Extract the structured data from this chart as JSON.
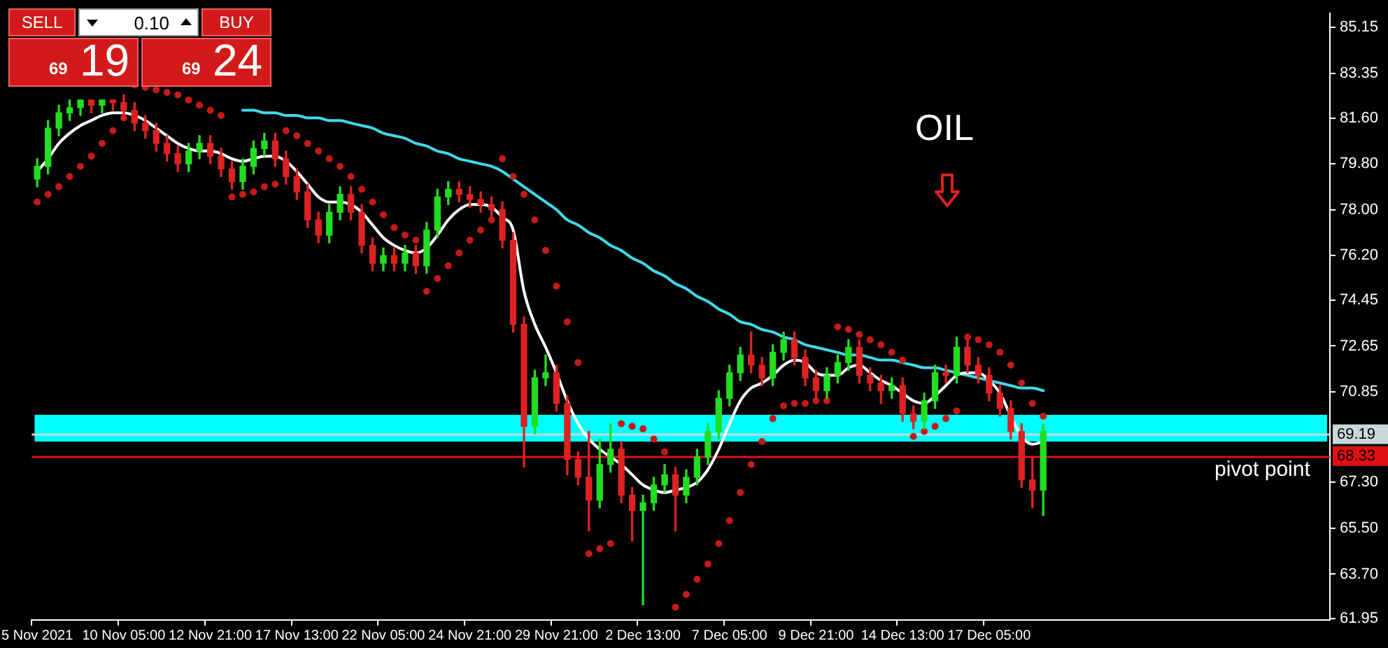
{
  "chart_data": {
    "type": "candlestick",
    "categories": [
      "5 Nov 2021",
      null,
      null,
      null,
      null,
      null,
      null,
      null,
      "10 Nov 05:00",
      null,
      null,
      null,
      null,
      null,
      null,
      null,
      "12 Nov 21:00",
      null,
      null,
      null,
      null,
      null,
      null,
      null,
      "17 Nov 13:00",
      null,
      null,
      null,
      null,
      null,
      null,
      null,
      "22 Nov 05:00",
      null,
      null,
      null,
      null,
      null,
      null,
      null,
      "24 Nov 21:00",
      null,
      null,
      null,
      null,
      null,
      null,
      null,
      "29 Nov 21:00",
      null,
      null,
      null,
      null,
      null,
      null,
      null,
      "2 Dec 13:00",
      null,
      null,
      null,
      null,
      null,
      null,
      null,
      "7 Dec 05:00",
      null,
      null,
      null,
      null,
      null,
      null,
      null,
      "9 Dec 21:00",
      null,
      null,
      null,
      null,
      null,
      null,
      null,
      "14 Dec 13:00",
      null,
      null,
      null,
      null,
      null,
      null,
      null,
      "17 Dec 05:00",
      null,
      null,
      null,
      null,
      null,
      null,
      null,
      null,
      null,
      null,
      null,
      null,
      null,
      null,
      null,
      null,
      null,
      null,
      null,
      null,
      null,
      null,
      null,
      null,
      null,
      null,
      null,
      null,
      null,
      null,
      null
    ],
    "series": [
      {
        "ohlc": [
          [
            79.2,
            80.0,
            78.9,
            79.7
          ],
          [
            79.7,
            81.5,
            79.4,
            81.2
          ],
          [
            81.2,
            82.1,
            80.9,
            81.8
          ],
          [
            81.8,
            82.3,
            81.5,
            82.0
          ],
          [
            82.0,
            82.3,
            81.7,
            82.3
          ],
          [
            82.3,
            82.3,
            81.8,
            82.1
          ],
          [
            82.1,
            82.3,
            81.8,
            82.3
          ],
          [
            82.3,
            82.3,
            81.9,
            82.2
          ],
          [
            82.2,
            82.5,
            81.6,
            81.9
          ],
          [
            81.9,
            82.2,
            81.1,
            81.4
          ],
          [
            81.4,
            81.7,
            80.8,
            81.1
          ],
          [
            81.1,
            81.4,
            80.3,
            80.6
          ],
          [
            80.6,
            80.9,
            79.9,
            80.2
          ],
          [
            80.2,
            80.5,
            79.5,
            79.8
          ],
          [
            79.8,
            80.6,
            79.5,
            80.3
          ],
          [
            80.3,
            80.9,
            80.0,
            80.6
          ],
          [
            80.6,
            80.9,
            79.8,
            80.1
          ],
          [
            80.1,
            80.4,
            79.3,
            79.6
          ],
          [
            79.6,
            79.9,
            78.8,
            79.1
          ],
          [
            79.1,
            80.0,
            78.8,
            79.7
          ],
          [
            79.7,
            80.7,
            79.4,
            80.4
          ],
          [
            80.4,
            81.0,
            80.1,
            80.7
          ],
          [
            80.7,
            81.0,
            79.7,
            80.0
          ],
          [
            80.0,
            80.3,
            79.0,
            79.3
          ],
          [
            79.3,
            79.6,
            78.4,
            78.7
          ],
          [
            78.7,
            79.0,
            77.3,
            77.6
          ],
          [
            77.6,
            77.9,
            76.7,
            77.0
          ],
          [
            77.0,
            78.2,
            76.7,
            77.9
          ],
          [
            77.9,
            78.9,
            77.6,
            78.6
          ],
          [
            78.6,
            78.9,
            77.6,
            77.9
          ],
          [
            77.9,
            78.2,
            76.3,
            76.6
          ],
          [
            76.6,
            76.9,
            75.6,
            75.9
          ],
          [
            75.9,
            76.5,
            75.6,
            76.2
          ],
          [
            76.2,
            76.5,
            75.6,
            75.9
          ],
          [
            75.9,
            76.6,
            75.6,
            76.3
          ],
          [
            76.3,
            76.6,
            75.5,
            75.8
          ],
          [
            75.8,
            77.5,
            75.5,
            77.2
          ],
          [
            77.2,
            78.8,
            76.9,
            78.5
          ],
          [
            78.5,
            79.1,
            78.2,
            78.8
          ],
          [
            78.8,
            79.1,
            78.3,
            78.6
          ],
          [
            78.6,
            78.9,
            78.1,
            78.4
          ],
          [
            78.4,
            78.7,
            77.9,
            78.2
          ],
          [
            78.2,
            78.5,
            77.7,
            78.0
          ],
          [
            78.0,
            78.3,
            76.5,
            76.8
          ],
          [
            76.8,
            77.1,
            73.2,
            73.5
          ],
          [
            73.5,
            73.8,
            67.9,
            69.5
          ],
          [
            69.5,
            71.7,
            69.2,
            71.4
          ],
          [
            71.4,
            72.3,
            71.1,
            71.6
          ],
          [
            71.6,
            71.9,
            70.1,
            70.4
          ],
          [
            70.4,
            70.7,
            67.6,
            68.2
          ],
          [
            68.2,
            68.5,
            67.2,
            67.5
          ],
          [
            67.5,
            69.3,
            65.4,
            66.6
          ],
          [
            66.6,
            69.0,
            66.3,
            68.0
          ],
          [
            68.0,
            69.6,
            67.7,
            68.6
          ],
          [
            68.6,
            68.9,
            66.5,
            66.8
          ],
          [
            66.8,
            67.1,
            65.0,
            66.2
          ],
          [
            66.2,
            66.8,
            62.5,
            66.5
          ],
          [
            66.5,
            67.5,
            66.2,
            67.2
          ],
          [
            67.2,
            68.0,
            66.9,
            67.6
          ],
          [
            67.6,
            67.9,
            65.4,
            66.8
          ],
          [
            66.8,
            67.8,
            66.5,
            67.5
          ],
          [
            67.5,
            68.6,
            67.2,
            68.3
          ],
          [
            68.3,
            69.6,
            68.0,
            69.3
          ],
          [
            69.3,
            70.9,
            69.0,
            70.6
          ],
          [
            70.6,
            71.9,
            70.3,
            71.6
          ],
          [
            71.6,
            72.6,
            71.3,
            72.3
          ],
          [
            72.3,
            73.2,
            71.6,
            71.9
          ],
          [
            71.9,
            72.2,
            71.1,
            71.4
          ],
          [
            71.4,
            72.7,
            71.1,
            72.4
          ],
          [
            72.4,
            73.2,
            72.1,
            72.9
          ],
          [
            72.9,
            73.2,
            71.9,
            72.2
          ],
          [
            72.2,
            72.5,
            71.1,
            71.4
          ],
          [
            71.4,
            71.7,
            70.6,
            70.9
          ],
          [
            70.9,
            71.8,
            70.6,
            71.5
          ],
          [
            71.5,
            72.3,
            71.2,
            72.0
          ],
          [
            72.0,
            72.9,
            71.7,
            72.6
          ],
          [
            72.6,
            72.9,
            71.2,
            71.5
          ],
          [
            71.5,
            71.8,
            70.9,
            71.2
          ],
          [
            71.2,
            71.5,
            70.4,
            70.9
          ],
          [
            70.9,
            71.4,
            70.6,
            71.1
          ],
          [
            71.1,
            71.4,
            69.7,
            70.0
          ],
          [
            70.0,
            70.3,
            69.4,
            69.7
          ],
          [
            69.7,
            70.8,
            69.4,
            70.5
          ],
          [
            70.5,
            71.9,
            70.2,
            71.6
          ],
          [
            71.6,
            71.9,
            71.2,
            71.5
          ],
          [
            71.5,
            73.0,
            71.2,
            72.6
          ],
          [
            72.6,
            72.9,
            71.6,
            71.9
          ],
          [
            71.9,
            72.2,
            71.2,
            71.5
          ],
          [
            71.5,
            71.8,
            70.5,
            70.8
          ],
          [
            70.8,
            71.1,
            69.9,
            70.2
          ],
          [
            70.2,
            70.5,
            69.0,
            69.3
          ],
          [
            69.3,
            69.6,
            67.1,
            67.4
          ],
          [
            67.4,
            68.3,
            66.3,
            67.0
          ],
          [
            67.0,
            69.6,
            66.0,
            69.3
          ],
          null,
          null,
          null,
          null,
          null,
          null,
          null,
          null,
          null,
          null,
          null,
          null,
          null,
          null,
          null,
          null,
          null,
          null,
          null,
          null,
          null,
          null,
          null,
          null,
          null,
          null
        ],
        "colors": [
          "#22dd22",
          "#22dd22",
          "#22dd22",
          "#22dd22",
          "#22dd22",
          "#dd2222",
          "#22dd22",
          "#dd2222",
          "#dd2222",
          "#dd2222",
          "#dd2222",
          "#dd2222",
          "#dd2222",
          "#dd2222",
          "#22dd22",
          "#22dd22",
          "#dd2222",
          "#dd2222",
          "#dd2222",
          "#22dd22",
          "#22dd22",
          "#22dd22",
          "#dd2222",
          "#dd2222",
          "#dd2222",
          "#dd2222",
          "#dd2222",
          "#22dd22",
          "#22dd22",
          "#dd2222",
          "#dd2222",
          "#dd2222",
          "#22dd22",
          "#dd2222",
          "#22dd22",
          "#dd2222",
          "#22dd22",
          "#22dd22",
          "#22dd22",
          "#dd2222",
          "#dd2222",
          "#dd2222",
          "#dd2222",
          "#dd2222",
          "#dd2222",
          "#dd2222",
          "#22dd22",
          "#22dd22",
          "#dd2222",
          "#dd2222",
          "#dd2222",
          "#dd2222",
          "#22dd22",
          "#22dd22",
          "#dd2222",
          "#dd2222",
          "#22dd22",
          "#22dd22",
          "#22dd22",
          "#dd2222",
          "#22dd22",
          "#22dd22",
          "#22dd22",
          "#22dd22",
          "#22dd22",
          "#22dd22",
          "#dd2222",
          "#dd2222",
          "#22dd22",
          "#22dd22",
          "#dd2222",
          "#dd2222",
          "#dd2222",
          "#22dd22",
          "#22dd22",
          "#22dd22",
          "#dd2222",
          "#dd2222",
          "#dd2222",
          "#22dd22",
          "#dd2222",
          "#dd2222",
          "#22dd22",
          "#22dd22",
          "#dd2222",
          "#22dd22",
          "#dd2222",
          "#dd2222",
          "#dd2222",
          "#dd2222",
          "#dd2222",
          "#dd2222",
          "#dd2222",
          "#22dd22",
          null,
          null,
          null,
          null,
          null,
          null,
          null,
          null,
          null,
          null,
          null,
          null,
          null,
          null,
          null,
          null,
          null,
          null,
          null,
          null,
          null,
          null,
          null,
          null,
          null,
          null
        ]
      },
      {
        "type": "line",
        "color": "#ffffff",
        "values": [
          79.5,
          80.0,
          80.6,
          81.0,
          81.3,
          81.5,
          81.7,
          81.8,
          81.8,
          81.7,
          81.5,
          81.2,
          80.9,
          80.6,
          80.4,
          80.3,
          80.3,
          80.2,
          80.0,
          79.9,
          80.0,
          80.1,
          80.1,
          79.9,
          79.5,
          79.0,
          78.5,
          78.3,
          78.3,
          78.2,
          77.9,
          77.4,
          76.9,
          76.6,
          76.4,
          76.3,
          76.5,
          77.0,
          77.6,
          78.0,
          78.2,
          78.2,
          78.1,
          77.7,
          77.2,
          74.8,
          73.5,
          72.6,
          71.6,
          70.5,
          69.6,
          69.0,
          68.6,
          68.3,
          68.0,
          67.6,
          67.2,
          67.0,
          66.9,
          67.0,
          67.1,
          67.3,
          67.8,
          68.6,
          69.6,
          70.5,
          71.0,
          71.2,
          71.5,
          71.9,
          72.1,
          72.0,
          71.6,
          71.5,
          71.5,
          71.8,
          71.9,
          71.6,
          71.3,
          71.1,
          70.8,
          70.5,
          70.4,
          70.7,
          71.1,
          71.5,
          71.6,
          71.6,
          71.3,
          70.8,
          69.9,
          69.1,
          68.8,
          68.9,
          null,
          null,
          null,
          null,
          null,
          null,
          null,
          null,
          null,
          null,
          null,
          null,
          null,
          null,
          null,
          null,
          null,
          null,
          null,
          null,
          null,
          null,
          null,
          null,
          null,
          null
        ]
      },
      {
        "type": "line",
        "color": "#40d8e8",
        "values": [
          null,
          null,
          null,
          null,
          null,
          null,
          null,
          null,
          null,
          null,
          null,
          null,
          null,
          null,
          null,
          null,
          null,
          null,
          null,
          81.9,
          81.9,
          81.8,
          81.8,
          81.7,
          81.7,
          81.6,
          81.6,
          81.5,
          81.5,
          81.4,
          81.3,
          81.2,
          81.0,
          80.9,
          80.8,
          80.6,
          80.5,
          80.3,
          80.2,
          80.0,
          79.9,
          79.8,
          79.7,
          79.5,
          79.2,
          78.9,
          78.6,
          78.3,
          78.0,
          77.6,
          77.4,
          77.1,
          76.9,
          76.6,
          76.4,
          76.1,
          75.9,
          75.6,
          75.4,
          75.1,
          74.9,
          74.6,
          74.4,
          74.1,
          73.9,
          73.6,
          73.5,
          73.3,
          73.2,
          73.0,
          72.9,
          72.7,
          72.6,
          72.5,
          72.4,
          72.3,
          72.3,
          72.2,
          72.1,
          72.1,
          72.0,
          71.9,
          71.8,
          71.8,
          71.7,
          71.6,
          71.5,
          71.4,
          71.3,
          71.2,
          71.1,
          71.0,
          71.0,
          70.9,
          null,
          null,
          null,
          null,
          null,
          null,
          null,
          null,
          null,
          null,
          null,
          null,
          null,
          null,
          null,
          null,
          null,
          null,
          null,
          null,
          null,
          null,
          null,
          null,
          null,
          null
        ]
      },
      {
        "type": "scatter",
        "color": "#c41a1a",
        "marker": "circle",
        "values": [
          78.3,
          78.6,
          78.9,
          79.3,
          79.7,
          80.1,
          80.6,
          81.1,
          81.6,
          82.9,
          82.8,
          82.7,
          82.6,
          82.5,
          82.3,
          82.1,
          81.9,
          81.7,
          78.5,
          78.6,
          78.7,
          78.9,
          79.0,
          81.1,
          80.9,
          80.6,
          80.3,
          80.0,
          79.7,
          79.3,
          78.8,
          78.3,
          77.8,
          77.3,
          77.0,
          76.8,
          74.8,
          75.3,
          75.8,
          76.3,
          76.8,
          77.2,
          77.6,
          80.0,
          79.3,
          78.6,
          77.6,
          76.4,
          75.0,
          73.6,
          72.0,
          64.5,
          64.7,
          64.9,
          69.6,
          69.5,
          69.4,
          69.0,
          68.5,
          62.4,
          62.9,
          63.5,
          64.1,
          64.9,
          65.8,
          66.9,
          68.0,
          68.9,
          69.8,
          70.3,
          70.4,
          70.4,
          70.5,
          70.5,
          73.4,
          73.3,
          73.1,
          72.9,
          72.7,
          72.4,
          72.1,
          69.1,
          69.3,
          69.5,
          69.8,
          70.1,
          73.0,
          72.9,
          72.7,
          72.4,
          71.9,
          71.2,
          70.4,
          69.9,
          null,
          null,
          null,
          null,
          null,
          null,
          null,
          null,
          null,
          null,
          null,
          null,
          null,
          null,
          null,
          null,
          null,
          null,
          null,
          null,
          null,
          null,
          null,
          null,
          null,
          null
        ]
      }
    ],
    "ylim": [
      61.9,
      85.7
    ],
    "yticks": [
      61.95,
      {
        "value": 63.7,
        "label": "63.70"
      },
      {
        "value": 65.5,
        "label": "65.50"
      },
      {
        "value": 67.3,
        "label": "67.30"
      },
      70.85,
      72.65,
      74.45,
      {
        "value": 76.2,
        "label": "76.20"
      },
      {
        "value": 78,
        "label": "78.00"
      },
      {
        "value": 79.8,
        "label": "79.80"
      },
      {
        "value": 81.6,
        "label": "81.60"
      },
      83.35,
      85.15
    ],
    "bands": [
      {
        "axis": "y",
        "from": 68.9,
        "to": 69.95,
        "color": "#00ffff"
      }
    ],
    "ref_lines": [
      {
        "axis": "y",
        "value": 69.19,
        "label": "69.19",
        "color": "#c8d8d8"
      },
      {
        "axis": "y",
        "value": 68.33,
        "label": "68.33",
        "color": "#e01010"
      }
    ],
    "annotations": [
      "OIL",
      "pivot point",
      "SELL",
      "0.10",
      "BUY",
      "69",
      "19",
      "69",
      "24"
    ],
    "legend": false
  }
}
